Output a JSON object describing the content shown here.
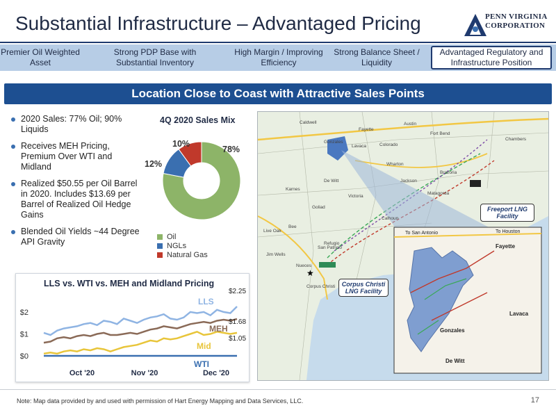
{
  "header": {
    "title": "Substantial Infrastructure – Advantaged Pricing",
    "logo_line1": "PENN VIRGINIA",
    "logo_line2": "CORPORATION"
  },
  "tabs": [
    {
      "label": "Premier Oil Weighted Asset",
      "active": false
    },
    {
      "label": "Strong PDP Base with Substantial Inventory",
      "active": false
    },
    {
      "label": "High Margin / Improving Efficiency",
      "active": false
    },
    {
      "label": "Strong Balance Sheet / Liquidity",
      "active": false
    },
    {
      "label": "Advantaged Regulatory and Infrastructure Position",
      "active": true
    }
  ],
  "banner": "Location Close to Coast with Attractive Sales Points",
  "bullets": [
    "2020 Sales: 77% Oil; 90% Liquids",
    "Receives MEH Pricing, Premium Over WTI and Midland",
    "Realized $50.55 per Oil Barrel in 2020. Includes $13.69 per Barrel of Realized Oil Hedge Gains",
    "Blended Oil Yields ~44 Degree API Gravity"
  ],
  "colors": {
    "oil": "#8db468",
    "ngl": "#3a6fb0",
    "gas": "#c0392b",
    "lls": "#8fb4e3",
    "meh": "#8a6a57",
    "mid": "#e8c53a",
    "wti": "#3a6fb0",
    "banner": "#1d4f91"
  },
  "pie_chart": {
    "type": "pie",
    "title": "4Q 2020 Sales Mix",
    "slices": [
      {
        "name": "Oil",
        "value": 78,
        "label": "78%"
      },
      {
        "name": "NGLs",
        "value": 12,
        "label": "12%"
      },
      {
        "name": "Natural Gas",
        "value": 10,
        "label": "10%"
      }
    ]
  },
  "chart_data": {
    "type": "line",
    "title": "LLS vs. WTI vs. MEH and Midland Pricing",
    "xlabel": "",
    "ylabel": "",
    "x_tick_labels": [
      "Oct '20",
      "Nov '20",
      "Dec '20"
    ],
    "y_tick_labels": [
      "$0",
      "$1",
      "$2"
    ],
    "ylim": [
      0,
      2.6
    ],
    "series": [
      {
        "name": "LLS",
        "end_label": "$2.25",
        "values": [
          1.05,
          0.95,
          1.15,
          1.25,
          1.3,
          1.35,
          1.45,
          1.5,
          1.4,
          1.6,
          1.55,
          1.45,
          1.7,
          1.6,
          1.5,
          1.65,
          1.75,
          1.8,
          1.9,
          1.7,
          1.65,
          1.75,
          2.0,
          1.95,
          2.0,
          1.85,
          2.1,
          2.0,
          1.95,
          2.25
        ]
      },
      {
        "name": "MEH",
        "end_label": "$1.68",
        "values": [
          0.6,
          0.65,
          0.8,
          0.85,
          0.8,
          0.9,
          0.95,
          0.9,
          1.0,
          1.05,
          0.95,
          0.95,
          1.0,
          1.05,
          1.0,
          1.1,
          1.2,
          1.25,
          1.35,
          1.3,
          1.25,
          1.35,
          1.45,
          1.5,
          1.55,
          1.5,
          1.6,
          1.65,
          1.6,
          1.68
        ]
      },
      {
        "name": "Mid",
        "end_label": "$1.05",
        "values": [
          0.1,
          0.15,
          0.1,
          0.2,
          0.25,
          0.2,
          0.3,
          0.25,
          0.35,
          0.3,
          0.2,
          0.3,
          0.4,
          0.45,
          0.5,
          0.6,
          0.7,
          0.65,
          0.8,
          0.75,
          0.8,
          0.9,
          1.0,
          1.1,
          0.95,
          1.0,
          1.1,
          1.05,
          1.0,
          1.05
        ]
      },
      {
        "name": "WTI",
        "end_label": "",
        "values": [
          0,
          0,
          0,
          0,
          0,
          0,
          0,
          0,
          0,
          0,
          0,
          0,
          0,
          0,
          0,
          0,
          0,
          0,
          0,
          0,
          0,
          0,
          0,
          0,
          0,
          0,
          0,
          0,
          0,
          0
        ]
      }
    ]
  },
  "map": {
    "callout_freeport": "Freeport LNG Facility",
    "callout_corpus": "Corpus Christi LNG Facility",
    "inset_to_san_antonio": "To San Antonio",
    "inset_to_houston": "To Houston",
    "inset_fayette": "Fayette",
    "inset_lavaca": "Lavaca",
    "inset_gonzales": "Gonzales",
    "inset_dewitt": "De Witt",
    "county_labels": [
      "Caldwell",
      "Fayette",
      "Austin",
      "Gonzales",
      "Lavaca",
      "Colorado",
      "Fort Bend",
      "Wharton",
      "Brazoria",
      "De Witt",
      "Jackson",
      "Matagorda",
      "Karnes",
      "Victoria",
      "Goliad",
      "Calhoun",
      "Bee",
      "Refugio",
      "San Patricio",
      "Nueces",
      "Live Oak",
      "Jim Wells",
      "Corpus Christi",
      "Chambers"
    ]
  },
  "footer": {
    "note": "Note: Map data provided by and used with permission of Hart Energy Mapping and Data Services, LLC.",
    "page": "17"
  }
}
